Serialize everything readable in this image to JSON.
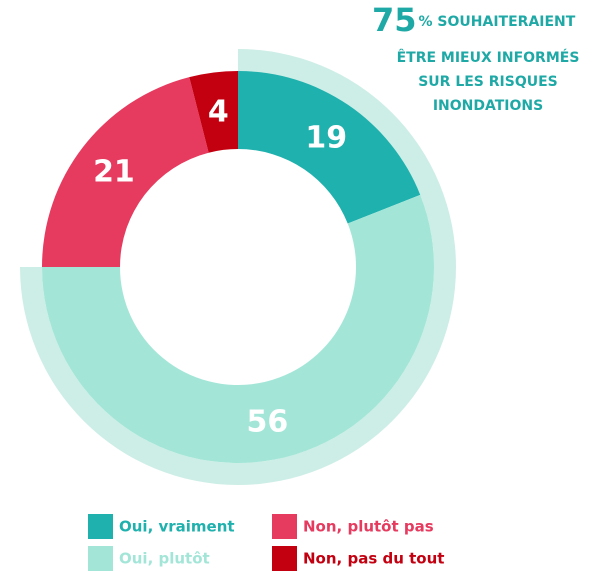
{
  "chart_data": {
    "type": "donut",
    "categories": [
      "Oui, vraiment",
      "Oui, plutôt",
      "Non, plutôt pas",
      "Non, pas du tout"
    ],
    "values": [
      19,
      56,
      21,
      4
    ],
    "colors": [
      "#1fb1ae",
      "#a3e6d8",
      "#e63a5f",
      "#c30010"
    ],
    "annotation": {
      "value": 75,
      "color": "#1fa9a6",
      "lines": [
        "% SOUHAITERAIENT",
        "ÊTRE MIEUX INFORMÉS",
        "SUR LES RISQUES",
        "INONDATIONS"
      ]
    }
  }
}
